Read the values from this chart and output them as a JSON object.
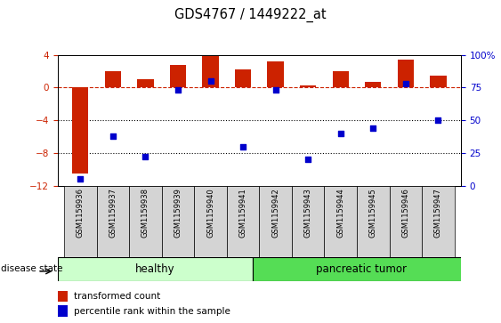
{
  "title": "GDS4767 / 1449222_at",
  "samples": [
    "GSM1159936",
    "GSM1159937",
    "GSM1159938",
    "GSM1159939",
    "GSM1159940",
    "GSM1159941",
    "GSM1159942",
    "GSM1159943",
    "GSM1159944",
    "GSM1159945",
    "GSM1159946",
    "GSM1159947"
  ],
  "transformed_count": [
    -10.5,
    2.0,
    1.0,
    2.8,
    3.9,
    2.2,
    3.2,
    0.3,
    2.0,
    0.7,
    3.4,
    1.5
  ],
  "percentile_rank": [
    5,
    38,
    22,
    73,
    80,
    30,
    73,
    20,
    40,
    44,
    78,
    50
  ],
  "healthy_color": "#ccffcc",
  "tumor_color": "#55dd55",
  "bar_color": "#cc2200",
  "dot_color": "#0000cc",
  "ylim_left": [
    -12,
    4
  ],
  "ylim_right": [
    0,
    100
  ],
  "yticks_left": [
    -12,
    -8,
    -4,
    0,
    4
  ],
  "yticks_right": [
    0,
    25,
    50,
    75,
    100
  ],
  "dotted_lines": [
    -4,
    -8
  ],
  "bar_width": 0.5,
  "n_healthy": 6,
  "n_tumor": 6
}
